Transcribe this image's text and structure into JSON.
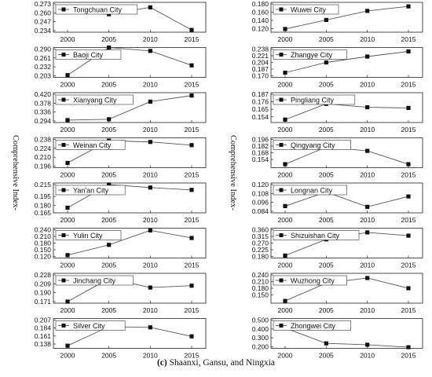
{
  "figure": {
    "caption_label": "(c)",
    "caption_text": "Shaanxi, Gansu, and Ningxia",
    "ylabel_left": "Comprehensive Index-",
    "ylabel_right": "Comprehensive Index-"
  },
  "chart_data": [
    {
      "type": "line",
      "column": "left",
      "title": "Tongchuan City",
      "x": [
        2000,
        2005,
        2010,
        2015
      ],
      "values": [
        0.261,
        0.258,
        0.268,
        0.235
      ],
      "ylim": [
        0.234,
        0.273
      ],
      "yticks": [
        "0.273",
        "0.260",
        "0.247",
        "0.234"
      ]
    },
    {
      "type": "line",
      "column": "left",
      "title": "Baoji City",
      "x": [
        2000,
        2005,
        2010,
        2015
      ],
      "values": [
        0.205,
        0.295,
        0.284,
        0.237
      ],
      "ylim": [
        0.203,
        0.29
      ],
      "yticks": [
        "0.290",
        "0.261",
        "0.232",
        "0.203"
      ]
    },
    {
      "type": "line",
      "column": "left",
      "title": "Xianyang City",
      "x": [
        2000,
        2005,
        2010,
        2015
      ],
      "values": [
        0.298,
        0.302,
        0.385,
        0.414
      ],
      "ylim": [
        0.294,
        0.42
      ],
      "yticks": [
        "0.420",
        "0.378",
        "0.336",
        "0.294"
      ]
    },
    {
      "type": "line",
      "column": "left",
      "title": "Weinan City",
      "x": [
        2000,
        2005,
        2010,
        2015
      ],
      "values": [
        0.201,
        0.236,
        0.234,
        0.229
      ],
      "ylim": [
        0.196,
        0.238
      ],
      "yticks": [
        "0.238",
        "0.224",
        "0.210",
        "0.196"
      ]
    },
    {
      "type": "line",
      "column": "left",
      "title": "Yan'an City",
      "x": [
        2000,
        2005,
        2010,
        2015
      ],
      "values": [
        0.176,
        0.215,
        0.21,
        0.206
      ],
      "ylim": [
        0.17,
        0.215
      ],
      "yticks": [
        "0.215",
        "0.195",
        "0.180",
        "0.165"
      ]
    },
    {
      "type": "line",
      "column": "left",
      "title": "Yulin City",
      "x": [
        2000,
        2005,
        2010,
        2015
      ],
      "values": [
        0.126,
        0.172,
        0.237,
        0.203
      ],
      "ylim": [
        0.12,
        0.24
      ],
      "yticks": [
        "0.240",
        "0.210",
        "0.180",
        "0.150",
        "0.120"
      ]
    },
    {
      "type": "line",
      "column": "left",
      "title": "Jinchang City",
      "x": [
        2000,
        2005,
        2010,
        2015
      ],
      "values": [
        0.171,
        0.22,
        0.201,
        0.205
      ],
      "ylim": [
        0.171,
        0.228
      ],
      "yticks": [
        "0.228",
        "0.209",
        "0.190",
        "0.171"
      ]
    },
    {
      "type": "line",
      "column": "left",
      "title": "Silver City",
      "x": [
        2000,
        2005,
        2010,
        2015
      ],
      "values": [
        0.133,
        0.188,
        0.186,
        0.16
      ],
      "ylim": [
        0.13,
        0.207
      ],
      "yticks": [
        "0.207",
        "0.184",
        "0.161",
        "0.138"
      ]
    },
    {
      "type": "line",
      "column": "right",
      "title": "Wuwei City",
      "x": [
        2000,
        2005,
        2010,
        2015
      ],
      "values": [
        0.119,
        0.141,
        0.163,
        0.174
      ],
      "ylim": [
        0.115,
        0.18
      ],
      "yticks": [
        "0.180",
        "0.160",
        "0.140",
        "0.120"
      ]
    },
    {
      "type": "line",
      "column": "right",
      "title": "Zhangye City",
      "x": [
        2000,
        2005,
        2010,
        2015
      ],
      "values": [
        0.178,
        0.204,
        0.219,
        0.232
      ],
      "ylim": [
        0.17,
        0.238
      ],
      "yticks": [
        "0.238",
        "0.221",
        "0.204",
        "0.187",
        "0.170"
      ]
    },
    {
      "type": "line",
      "column": "right",
      "title": "Pingliang City",
      "x": [
        2000,
        2005,
        2010,
        2015
      ],
      "values": [
        0.15,
        0.173,
        0.168,
        0.167
      ],
      "ylim": [
        0.148,
        0.187
      ],
      "yticks": [
        "0.187",
        "0.176",
        "0.165",
        "0.154"
      ]
    },
    {
      "type": "line",
      "column": "right",
      "title": "Qingyang City",
      "x": [
        2000,
        2005,
        2010,
        2015
      ],
      "values": [
        0.144,
        0.18,
        0.172,
        0.144
      ],
      "ylim": [
        0.14,
        0.196
      ],
      "yticks": [
        "0.196",
        "0.182",
        "0.168",
        "0.154"
      ]
    },
    {
      "type": "line",
      "column": "right",
      "title": "Longnan City",
      "x": [
        2000,
        2005,
        2010,
        2015
      ],
      "values": [
        0.091,
        0.11,
        0.09,
        0.104
      ],
      "ylim": [
        0.084,
        0.12
      ],
      "yticks": [
        "0.120",
        "0.108",
        "0.096",
        "0.084"
      ]
    },
    {
      "type": "line",
      "column": "right",
      "title": "Shizuishan City",
      "x": [
        2000,
        2005,
        2010,
        2015
      ],
      "values": [
        0.186,
        0.295,
        0.342,
        0.32
      ],
      "ylim": [
        0.18,
        0.36
      ],
      "yticks": [
        "0.360",
        "0.315",
        "0.270",
        "0.225",
        "0.180"
      ]
    },
    {
      "type": "line",
      "column": "right",
      "title": "Wuzhong City",
      "x": [
        2000,
        2005,
        2010,
        2015
      ],
      "values": [
        0.123,
        0.203,
        0.226,
        0.18
      ],
      "ylim": [
        0.12,
        0.24
      ],
      "yticks": [
        "0.240",
        "0.210",
        "0.180",
        "0.150"
      ]
    },
    {
      "type": "line",
      "column": "right",
      "title": "Zhongwei City",
      "x": [
        2000,
        2005,
        2010,
        2015
      ],
      "values": [
        0.41,
        0.238,
        0.223,
        0.195
      ],
      "ylim": [
        0.2,
        0.5
      ],
      "yticks": [
        "0.500",
        "0.400",
        "0.300",
        "0.200"
      ]
    }
  ]
}
